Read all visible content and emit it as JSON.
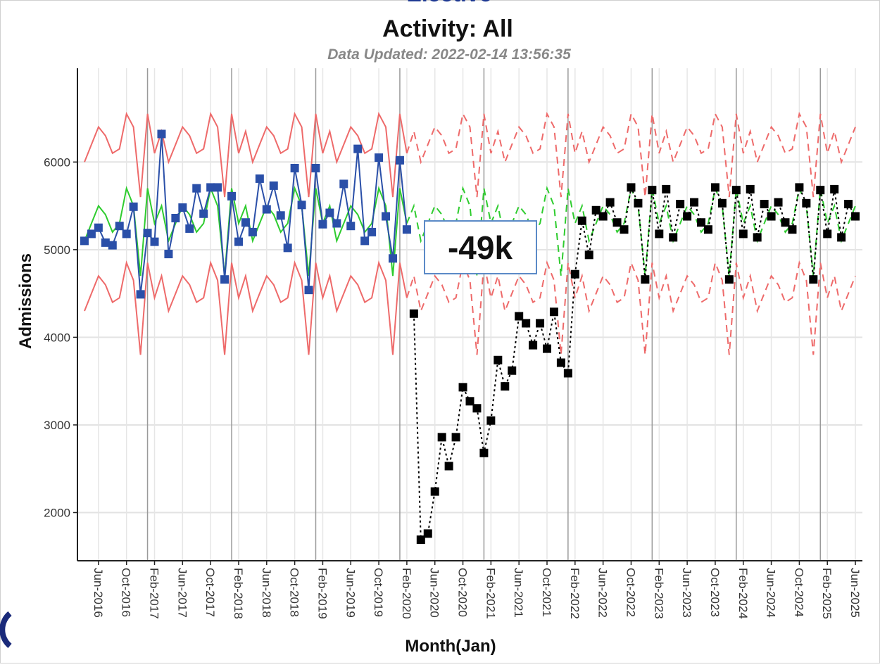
{
  "chart_data": {
    "type": "line",
    "title": "Elective",
    "subtitle": "Activity: All",
    "caption": "Data Updated: 2022-02-14 13:56:35",
    "x_label": "Month(Jan)",
    "y_label": "Admissions",
    "annotation": "-49k",
    "grid": true,
    "x": [
      "2016-04",
      "2016-05",
      "2016-06",
      "2016-07",
      "2016-08",
      "2016-09",
      "2016-10",
      "2016-11",
      "2016-12",
      "2017-01",
      "2017-02",
      "2017-03",
      "2017-04",
      "2017-05",
      "2017-06",
      "2017-07",
      "2017-08",
      "2017-09",
      "2017-10",
      "2017-11",
      "2017-12",
      "2018-01",
      "2018-02",
      "2018-03",
      "2018-04",
      "2018-05",
      "2018-06",
      "2018-07",
      "2018-08",
      "2018-09",
      "2018-10",
      "2018-11",
      "2018-12",
      "2019-01",
      "2019-02",
      "2019-03",
      "2019-04",
      "2019-05",
      "2019-06",
      "2019-07",
      "2019-08",
      "2019-09",
      "2019-10",
      "2019-11",
      "2019-12",
      "2020-01",
      "2020-02",
      "2020-03",
      "2020-04",
      "2020-05",
      "2020-06",
      "2020-07",
      "2020-08",
      "2020-09",
      "2020-10",
      "2020-11",
      "2020-12",
      "2021-01",
      "2021-02",
      "2021-03",
      "2021-04",
      "2021-05",
      "2021-06",
      "2021-07",
      "2021-08",
      "2021-09",
      "2021-10",
      "2021-11",
      "2021-12",
      "2022-01",
      "2022-02",
      "2022-03",
      "2022-04",
      "2022-05",
      "2022-06",
      "2022-07",
      "2022-08",
      "2022-09",
      "2022-10",
      "2022-11",
      "2022-12",
      "2023-01",
      "2023-02",
      "2023-03",
      "2023-04",
      "2023-05",
      "2023-06",
      "2023-07",
      "2023-08",
      "2023-09",
      "2023-10",
      "2023-11",
      "2023-12",
      "2024-01",
      "2024-02",
      "2024-03",
      "2024-04",
      "2024-05",
      "2024-06",
      "2024-07",
      "2024-08",
      "2024-09",
      "2024-10",
      "2024-11",
      "2024-12",
      "2025-01",
      "2025-02",
      "2025-03",
      "2025-04",
      "2025-05",
      "2025-06"
    ],
    "xlim": [
      "2016-03",
      "2025-07"
    ],
    "xticks": [
      {
        "value": "2016-06",
        "label": "Jun-2016"
      },
      {
        "value": "2016-10",
        "label": "Oct-2016"
      },
      {
        "value": "2017-02",
        "label": "Feb-2017"
      },
      {
        "value": "2017-06",
        "label": "Jun-2017"
      },
      {
        "value": "2017-10",
        "label": "Oct-2017"
      },
      {
        "value": "2018-02",
        "label": "Feb-2018"
      },
      {
        "value": "2018-06",
        "label": "Jun-2018"
      },
      {
        "value": "2018-10",
        "label": "Oct-2018"
      },
      {
        "value": "2019-02",
        "label": "Feb-2019"
      },
      {
        "value": "2019-06",
        "label": "Jun-2019"
      },
      {
        "value": "2019-10",
        "label": "Oct-2019"
      },
      {
        "value": "2020-02",
        "label": "Feb-2020"
      },
      {
        "value": "2020-06",
        "label": "Jun-2020"
      },
      {
        "value": "2020-10",
        "label": "Oct-2020"
      },
      {
        "value": "2021-02",
        "label": "Feb-2021"
      },
      {
        "value": "2021-06",
        "label": "Jun-2021"
      },
      {
        "value": "2021-10",
        "label": "Oct-2021"
      },
      {
        "value": "2022-02",
        "label": "Feb-2022"
      },
      {
        "value": "2022-06",
        "label": "Jun-2022"
      },
      {
        "value": "2022-10",
        "label": "Oct-2022"
      },
      {
        "value": "2023-02",
        "label": "Feb-2023"
      },
      {
        "value": "2023-06",
        "label": "Jun-2023"
      },
      {
        "value": "2023-10",
        "label": "Oct-2023"
      },
      {
        "value": "2024-02",
        "label": "Feb-2024"
      },
      {
        "value": "2024-06",
        "label": "Jun-2024"
      },
      {
        "value": "2024-10",
        "label": "Oct-2024"
      },
      {
        "value": "2025-02",
        "label": "Feb-2025"
      },
      {
        "value": "2025-06",
        "label": "Jun-2025"
      }
    ],
    "ylim": [
      1450,
      7070
    ],
    "yticks": [
      2000,
      3000,
      4000,
      5000,
      6000
    ],
    "series": [
      {
        "color": "#ee6a6a",
        "dashed_from": "2020-02",
        "values": [
          6000,
          6200,
          6400,
          6300,
          6100,
          6150,
          6550,
          6400,
          5600,
          6550,
          6100,
          6350,
          6000,
          6200,
          6400,
          6300,
          6100,
          6150,
          6550,
          6400,
          5600,
          6550,
          6100,
          6350,
          6000,
          6200,
          6400,
          6300,
          6100,
          6150,
          6550,
          6400,
          5600,
          6550,
          6100,
          6350,
          6000,
          6200,
          6400,
          6300,
          6100,
          6150,
          6550,
          6400,
          5600,
          6550,
          6100,
          6350,
          6000,
          6200,
          6400,
          6300,
          6100,
          6150,
          6550,
          6400,
          5600,
          6550,
          6100,
          6350,
          6000,
          6200,
          6400,
          6300,
          6100,
          6150,
          6550,
          6400,
          5600,
          6550,
          6100,
          6350,
          6000,
          6200,
          6400,
          6300,
          6100,
          6150,
          6550,
          6400,
          5600,
          6550,
          6100,
          6350,
          6000,
          6200,
          6400,
          6300,
          6100,
          6150,
          6550,
          6400,
          5600,
          6550,
          6100,
          6350,
          6000,
          6200,
          6400,
          6300,
          6100,
          6150,
          6550,
          6400,
          5600,
          6550,
          6100,
          6350,
          6000,
          6200,
          6400
        ]
      },
      {
        "color": "#ee6a6a",
        "dashed_from": "2020-02",
        "values": [
          4300,
          4500,
          4700,
          4600,
          4400,
          4450,
          4850,
          4650,
          3800,
          4850,
          4450,
          4700,
          4300,
          4500,
          4700,
          4600,
          4400,
          4450,
          4850,
          4650,
          3800,
          4850,
          4450,
          4700,
          4300,
          4500,
          4700,
          4600,
          4400,
          4450,
          4850,
          4650,
          3800,
          4850,
          4450,
          4700,
          4300,
          4500,
          4700,
          4600,
          4400,
          4450,
          4850,
          4650,
          3800,
          4850,
          4450,
          4700,
          4300,
          4500,
          4700,
          4600,
          4400,
          4450,
          4850,
          4650,
          3800,
          4850,
          4450,
          4700,
          4300,
          4500,
          4700,
          4600,
          4400,
          4450,
          4850,
          4650,
          3800,
          4850,
          4450,
          4700,
          4300,
          4500,
          4700,
          4600,
          4400,
          4450,
          4850,
          4650,
          3800,
          4850,
          4450,
          4700,
          4300,
          4500,
          4700,
          4600,
          4400,
          4450,
          4850,
          4650,
          3800,
          4850,
          4450,
          4700,
          4300,
          4500,
          4700,
          4600,
          4400,
          4450,
          4850,
          4650,
          3800,
          4850,
          4450,
          4700,
          4300,
          4500,
          4700
        ]
      },
      {
        "color": "#2ecc2e",
        "dashed_from": "2020-02",
        "values": [
          5100,
          5300,
          5500,
          5400,
          5200,
          5300,
          5700,
          5500,
          4700,
          5700,
          5300,
          5500,
          5100,
          5300,
          5500,
          5400,
          5200,
          5300,
          5700,
          5500,
          4700,
          5700,
          5300,
          5500,
          5100,
          5300,
          5500,
          5400,
          5200,
          5300,
          5700,
          5500,
          4700,
          5700,
          5300,
          5500,
          5100,
          5300,
          5500,
          5400,
          5200,
          5300,
          5700,
          5500,
          4700,
          5700,
          5300,
          5500,
          5100,
          5300,
          5500,
          5400,
          5200,
          5300,
          5700,
          5500,
          4700,
          5700,
          5300,
          5500,
          5100,
          5300,
          5500,
          5400,
          5200,
          5300,
          5700,
          5500,
          4700,
          5700,
          5300,
          5500,
          5100,
          5300,
          5500,
          5400,
          5200,
          5300,
          5700,
          5500,
          4700,
          5700,
          5300,
          5500,
          5100,
          5300,
          5500,
          5400,
          5200,
          5300,
          5700,
          5500,
          4700,
          5700,
          5300,
          5500,
          5100,
          5300,
          5500,
          5400,
          5200,
          5300,
          5700,
          5500,
          4700,
          5700,
          5300,
          5500,
          5100,
          5300,
          5500
        ]
      },
      {
        "color": "#2a4fa8",
        "marker": "square",
        "values": [
          5100,
          5180,
          5250,
          5080,
          5050,
          5270,
          5180,
          5490,
          4490,
          5190,
          5090,
          6320,
          4950,
          5360,
          5480,
          5240,
          5700,
          5410,
          5710,
          5710,
          4660,
          5610,
          5090,
          5310,
          5200,
          5810,
          5460,
          5730,
          5390,
          5020,
          5930,
          5510,
          4540,
          5930,
          5290,
          5420,
          5300,
          5750,
          5270,
          6150,
          5100,
          5200,
          6050,
          5380,
          4900,
          6020,
          5230,
          null,
          null,
          null,
          null,
          null,
          null,
          null,
          null,
          null,
          null,
          null,
          null,
          null,
          null,
          null,
          null,
          null,
          null,
          null,
          null,
          null,
          null,
          null,
          null,
          null,
          null,
          null,
          null,
          null,
          null,
          null,
          null,
          null,
          null,
          null,
          null,
          null,
          null,
          null,
          null,
          null,
          null,
          null,
          null,
          null,
          null,
          null,
          null,
          null,
          null,
          null,
          null,
          null,
          null,
          null,
          null,
          null,
          null,
          null,
          null,
          null,
          null,
          null,
          null
        ]
      },
      {
        "color": "#000000",
        "marker": "square",
        "line_style": "dotted",
        "values": [
          null,
          null,
          null,
          null,
          null,
          null,
          null,
          null,
          null,
          null,
          null,
          null,
          null,
          null,
          null,
          null,
          null,
          null,
          null,
          null,
          null,
          null,
          null,
          null,
          null,
          null,
          null,
          null,
          null,
          null,
          null,
          null,
          null,
          null,
          null,
          null,
          null,
          null,
          null,
          null,
          null,
          null,
          null,
          null,
          null,
          null,
          null,
          4270,
          1690,
          1760,
          2240,
          2860,
          2530,
          2860,
          3430,
          3270,
          3190,
          2680,
          3050,
          3740,
          3440,
          3620,
          4240,
          4160,
          3910,
          4160,
          3870,
          4290,
          3710,
          3590,
          4720,
          5330,
          4940,
          5450,
          5380,
          5540,
          5310,
          5230,
          5710,
          5530,
          4660,
          5680,
          5180,
          5690,
          5140,
          5520,
          5380,
          5540,
          5310,
          5230,
          5710,
          5530,
          4660,
          5680,
          5180,
          5690,
          5140,
          5520,
          5380,
          5540,
          5310,
          5230,
          5710,
          5530,
          4660,
          5680,
          5180,
          5690,
          5140,
          5520,
          5380
        ]
      }
    ]
  }
}
